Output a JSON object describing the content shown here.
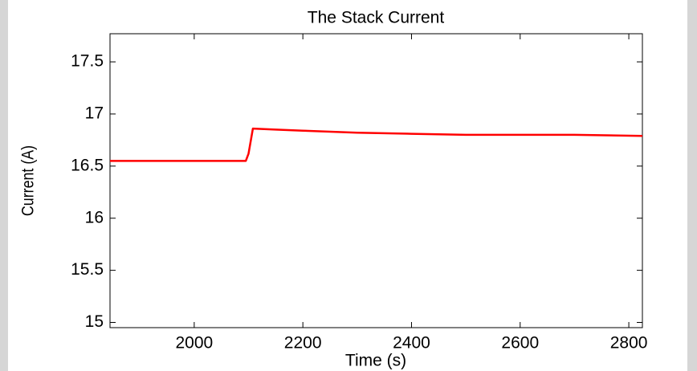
{
  "chart_data": {
    "type": "line",
    "title": "The Stack Current",
    "x_label": "Time (s)",
    "y_label": "Current (A)",
    "x": [
      1845,
      2095,
      2100,
      2108,
      2150,
      2200,
      2300,
      2400,
      2500,
      2600,
      2700,
      2825
    ],
    "series": [
      {
        "name": "Current",
        "color": "#ff0000",
        "values": [
          16.55,
          16.55,
          16.62,
          16.86,
          16.85,
          16.84,
          16.82,
          16.81,
          16.8,
          16.8,
          16.8,
          16.79
        ]
      }
    ],
    "xlim": [
      1845,
      2825
    ],
    "xticks": [
      2000,
      2200,
      2400,
      2600,
      2800
    ],
    "ylim": [
      14.95,
      17.77
    ],
    "yticks": [
      15,
      15.5,
      16,
      16.5,
      17,
      17.5
    ],
    "grid": false
  }
}
